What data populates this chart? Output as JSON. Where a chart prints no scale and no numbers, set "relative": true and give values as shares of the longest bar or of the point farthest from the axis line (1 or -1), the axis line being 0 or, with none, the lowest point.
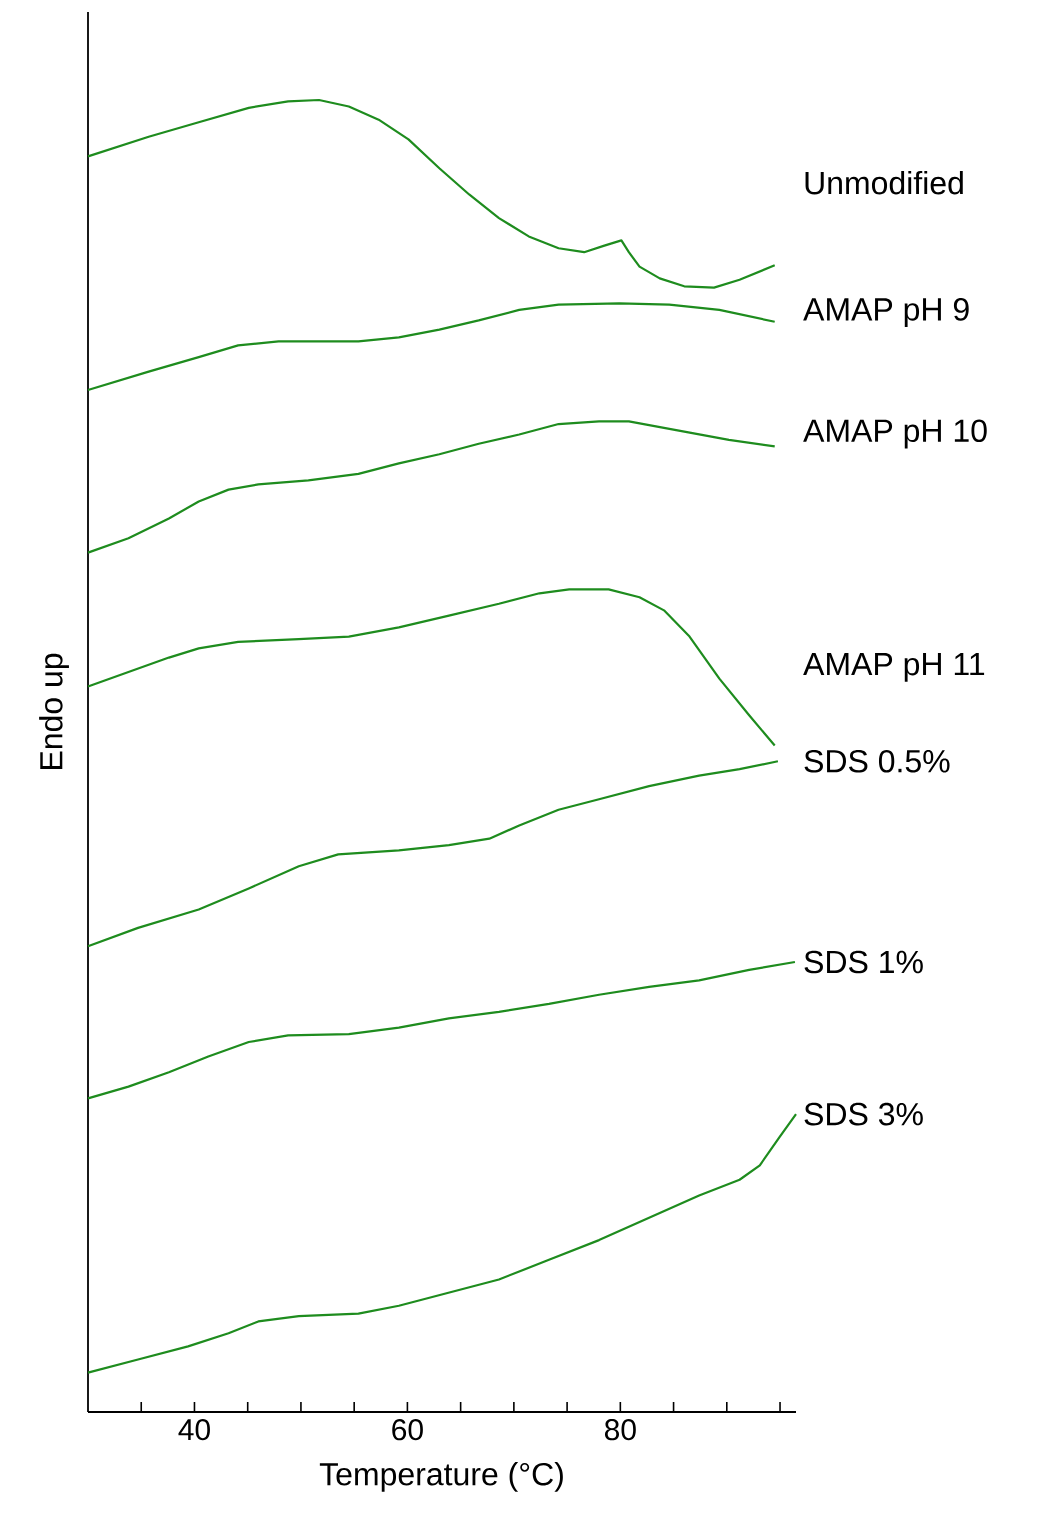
{
  "chart_data": {
    "type": "line",
    "relative": true,
    "xlabel": "Temperature (°C)",
    "ylabel": "Endo up",
    "xlim": [
      30,
      96.5
    ],
    "xticks": [
      {
        "value": 35,
        "label": null
      },
      40,
      {
        "value": 45,
        "label": null
      },
      {
        "value": 50,
        "label": null
      },
      {
        "value": 55,
        "label": null
      },
      60,
      {
        "value": 65,
        "label": null
      },
      {
        "value": 70,
        "label": null
      },
      {
        "value": 75,
        "label": null
      },
      80,
      {
        "value": 85,
        "label": null
      },
      {
        "value": 90,
        "label": null
      },
      {
        "value": 95,
        "label": null
      }
    ],
    "tick_labels": "x",
    "series": [
      {
        "name": "Unmodified",
        "color": "#1e8c1e",
        "x": [
          30,
          35.7,
          40.4,
          45.1,
          48.8,
          51.7,
          54.5,
          57.3,
          60.1,
          63.0,
          65.8,
          68.6,
          71.4,
          74.2,
          76.6,
          78.5,
          80.1,
          80.8,
          81.8,
          83.7,
          86.0,
          88.8,
          91.2,
          94.5
        ],
        "values": [
          0.957,
          0.972,
          0.983,
          0.994,
          0.999,
          1.0,
          0.995,
          0.985,
          0.97,
          0.948,
          0.928,
          0.91,
          0.896,
          0.887,
          0.884,
          0.889,
          0.893,
          0.884,
          0.873,
          0.864,
          0.858,
          0.857,
          0.863,
          0.874
        ]
      },
      {
        "name": "AMAP pH 9",
        "color": "#1e8c1e",
        "x": [
          30,
          35.7,
          40.4,
          44.1,
          47.9,
          55.4,
          59.2,
          63.0,
          66.7,
          70.5,
          74.2,
          79.9,
          84.6,
          89.3,
          94.5
        ],
        "values": [
          0.779,
          0.793,
          0.804,
          0.813,
          0.816,
          0.816,
          0.819,
          0.825,
          0.832,
          0.84,
          0.844,
          0.845,
          0.844,
          0.84,
          0.831
        ]
      },
      {
        "name": "AMAP pH 10",
        "color": "#1e8c1e",
        "x": [
          30,
          33.8,
          37.6,
          40.4,
          43.2,
          46.0,
          50.7,
          55.4,
          59.2,
          63.0,
          66.7,
          70.5,
          74.2,
          78.0,
          80.8,
          85.5,
          90.2,
          94.5
        ],
        "values": [
          0.655,
          0.666,
          0.681,
          0.694,
          0.703,
          0.707,
          0.71,
          0.715,
          0.723,
          0.73,
          0.738,
          0.745,
          0.753,
          0.755,
          0.755,
          0.748,
          0.741,
          0.736
        ]
      },
      {
        "name": "AMAP pH 11",
        "color": "#1e8c1e",
        "x": [
          30,
          33.8,
          37.6,
          40.4,
          44.1,
          49.8,
          54.5,
          59.2,
          63.9,
          68.6,
          72.4,
          75.2,
          78.9,
          81.8,
          84.1,
          86.5,
          89.3,
          92.1,
          94.5
        ],
        "values": [
          0.553,
          0.564,
          0.575,
          0.582,
          0.587,
          0.589,
          0.591,
          0.598,
          0.607,
          0.616,
          0.624,
          0.627,
          0.627,
          0.621,
          0.611,
          0.591,
          0.559,
          0.531,
          0.508
        ]
      },
      {
        "name": "SDS 0.5%",
        "color": "#1e8c1e",
        "x": [
          30,
          34.7,
          40.4,
          45.1,
          49.8,
          53.5,
          59.2,
          63.9,
          67.7,
          70.5,
          74.2,
          78.0,
          82.7,
          87.4,
          91.2,
          94.8
        ],
        "values": [
          0.355,
          0.369,
          0.383,
          0.399,
          0.416,
          0.425,
          0.428,
          0.432,
          0.437,
          0.447,
          0.459,
          0.467,
          0.477,
          0.485,
          0.49,
          0.496
        ]
      },
      {
        "name": "SDS 1%",
        "color": "#1e8c1e",
        "x": [
          30,
          33.8,
          37.6,
          41.3,
          45.1,
          48.8,
          54.5,
          59.2,
          63.9,
          68.6,
          73.3,
          78.0,
          82.7,
          87.4,
          92.1,
          96.4
        ],
        "values": [
          0.239,
          0.248,
          0.259,
          0.271,
          0.282,
          0.287,
          0.288,
          0.293,
          0.3,
          0.305,
          0.311,
          0.318,
          0.324,
          0.329,
          0.337,
          0.343
        ]
      },
      {
        "name": "SDS 3%",
        "color": "#1e8c1e",
        "x": [
          30,
          34.7,
          39.4,
          43.2,
          46.0,
          49.8,
          55.4,
          59.2,
          63.9,
          68.6,
          73.3,
          78.0,
          82.7,
          87.4,
          91.2,
          93.1,
          94.9,
          96.5
        ],
        "values": [
          0.03,
          0.04,
          0.05,
          0.06,
          0.069,
          0.073,
          0.075,
          0.081,
          0.091,
          0.101,
          0.116,
          0.131,
          0.148,
          0.165,
          0.177,
          0.188,
          0.209,
          0.227
        ]
      }
    ]
  }
}
